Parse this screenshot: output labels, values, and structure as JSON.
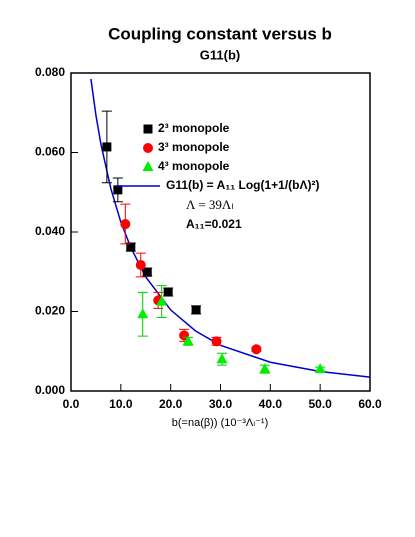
{
  "chart_data": {
    "type": "scatter",
    "title": "Coupling constant versus b",
    "subtitle": "G11(b)",
    "x_label": "b(=na(β)) (10⁻³Λₗ⁻¹)",
    "xlim": [
      0,
      60
    ],
    "ylim": [
      0,
      0.08
    ],
    "xticks": [
      {
        "value": 0,
        "label": "0.0"
      },
      {
        "value": 10,
        "label": "10.0"
      },
      {
        "value": 20,
        "label": "20.0"
      },
      {
        "value": 30,
        "label": "30.0"
      },
      {
        "value": 40,
        "label": "40.0"
      },
      {
        "value": 50,
        "label": "50.0"
      },
      {
        "value": 60,
        "label": "60.0"
      }
    ],
    "yticks": [
      {
        "value": 0,
        "label": "0.000"
      },
      {
        "value": 0.02,
        "label": "0.020"
      },
      {
        "value": 0.04,
        "label": "0.040"
      },
      {
        "value": 0.06,
        "label": "0.060"
      },
      {
        "value": 0.08,
        "label": "0.080"
      }
    ],
    "series": [
      {
        "name": "2³ monopole",
        "type": "scatter",
        "marker": "square",
        "color": "#000000",
        "x": [
          7.2,
          9.4,
          12.0,
          15.3,
          19.5,
          25.1
        ],
        "values": [
          0.0614,
          0.0506,
          0.0362,
          0.0299,
          0.0249,
          0.0204
        ],
        "errors": [
          0.009,
          0.003,
          0.001,
          0.001,
          0.001,
          0.001
        ]
      },
      {
        "name": "3³ monopole",
        "type": "scatter",
        "marker": "circle",
        "color": "#ff0000",
        "x": [
          10.9,
          14.0,
          17.5,
          22.7,
          29.2,
          37.2
        ],
        "values": [
          0.042,
          0.0317,
          0.0228,
          0.014,
          0.0125,
          0.0105
        ],
        "errors": [
          0.005,
          0.003,
          0.002,
          0.0015,
          0.001,
          0.0005
        ]
      },
      {
        "name": "4³ monopole",
        "type": "scatter",
        "marker": "triangle",
        "color": "#00ee00",
        "x": [
          14.4,
          18.2,
          23.5,
          30.3,
          38.9,
          50.0
        ],
        "values": [
          0.0193,
          0.0225,
          0.0125,
          0.008,
          0.0055,
          0.0055
        ],
        "errors": [
          0.0055,
          0.004,
          0.001,
          0.0015,
          0.001,
          0.0005
        ]
      },
      {
        "name": "G11(b) = A₁₁ Log(1+1/(bΛ)²)",
        "type": "line",
        "color": "#0000cc",
        "x": [
          4,
          5,
          6,
          8,
          10,
          12,
          15,
          20,
          25,
          30,
          40,
          50,
          60
        ],
        "values": [
          0.0785,
          0.0694,
          0.0621,
          0.0509,
          0.0425,
          0.0361,
          0.0287,
          0.0204,
          0.0151,
          0.0115,
          0.00723,
          0.0049,
          0.0035
        ]
      }
    ],
    "annotations": [
      "Λ = 39Λₗ",
      "A₁₁=0.021"
    ]
  }
}
